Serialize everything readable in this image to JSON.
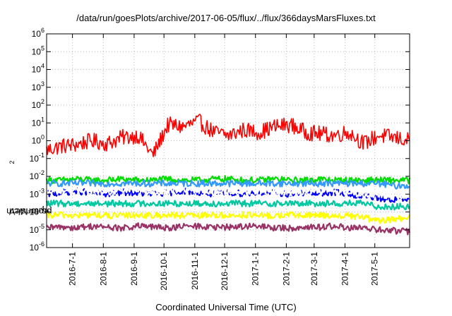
{
  "chart_data": {
    "type": "line",
    "title": "/data/run/goesPlots/archive/2017-06-05/flux/../flux/366daysMarsFluxes.txt",
    "xlabel": "Coordinated Universal Time (UTC)",
    "ylabel": {
      "prefix": "protons/cm",
      "sup": "2",
      "suffix": "-s-sr-MeV"
    },
    "yscale": "log",
    "ylim": [
      1e-06,
      1000000.0
    ],
    "xlim": [
      "2016-06-05",
      "2017-06-05"
    ],
    "grid": true,
    "x_ticks": [
      "2016-7-1",
      "2016-8-1",
      "2016-9-1",
      "2016-10-1",
      "2016-11-1",
      "2016-12-1",
      "2017-1-1",
      "2017-2-1",
      "2017-3-1",
      "2017-4-1",
      "2017-5-1"
    ],
    "y_ticks": [
      {
        "base": "10",
        "exp": "-6"
      },
      {
        "base": "10",
        "exp": "-5"
      },
      {
        "base": "10",
        "exp": "-4"
      },
      {
        "base": "10",
        "exp": "-3"
      },
      {
        "base": "10",
        "exp": "-2"
      },
      {
        "base": "10",
        "exp": "-1"
      },
      {
        "base": "10",
        "exp": "0"
      },
      {
        "base": "10",
        "exp": "1"
      },
      {
        "base": "10",
        "exp": "2"
      },
      {
        "base": "10",
        "exp": "3"
      },
      {
        "base": "10",
        "exp": "4"
      },
      {
        "base": "10",
        "exp": "5"
      },
      {
        "base": "10",
        "exp": "6"
      }
    ],
    "x_dates": [
      "2016-06-05",
      "2016-06-20",
      "2016-07-05",
      "2016-07-20",
      "2016-08-05",
      "2016-08-20",
      "2016-09-05",
      "2016-09-20",
      "2016-10-05",
      "2016-10-20",
      "2016-11-05",
      "2016-11-20",
      "2016-12-05",
      "2016-12-20",
      "2017-01-05",
      "2017-01-20",
      "2017-02-05",
      "2017-02-20",
      "2017-03-05",
      "2017-03-20",
      "2017-04-05",
      "2017-04-20",
      "2017-05-05",
      "2017-05-20",
      "2017-06-05"
    ],
    "series": [
      {
        "color": "#ff0000",
        "values": [
          0.3,
          0.5,
          0.6,
          1.0,
          0.7,
          1.5,
          2.0,
          0.15,
          8,
          6,
          12,
          3,
          2,
          4,
          3,
          6,
          8,
          3,
          2.5,
          2,
          3,
          0.7,
          2,
          1.5,
          1.0
        ]
      },
      {
        "color": "#00dd00",
        "values": [
          0.006,
          0.006,
          0.007,
          0.006,
          0.006,
          0.007,
          0.006,
          0.006,
          0.007,
          0.006,
          0.006,
          0.007,
          0.007,
          0.006,
          0.006,
          0.007,
          0.006,
          0.006,
          0.007,
          0.006,
          0.006,
          0.006,
          0.006,
          0.006,
          0.006
        ]
      },
      {
        "color": "#3399ff",
        "values": [
          0.004,
          0.004,
          0.004,
          0.004,
          0.004,
          0.004,
          0.004,
          0.004,
          0.004,
          0.004,
          0.004,
          0.004,
          0.004,
          0.004,
          0.004,
          0.004,
          0.004,
          0.004,
          0.004,
          0.004,
          0.004,
          0.004,
          0.004,
          0.003,
          0.003
        ]
      },
      {
        "color": "#0000ff",
        "values": [
          0.001,
          0.0012,
          0.0015,
          0.0012,
          0.001,
          0.0013,
          0.0012,
          0.001,
          0.0012,
          0.0015,
          0.0013,
          0.001,
          0.0012,
          0.0011,
          0.0013,
          0.0012,
          0.001,
          0.0012,
          0.0011,
          0.0013,
          0.001,
          0.0008,
          0.0006,
          0.0005,
          0.0005
        ]
      },
      {
        "color": "#ffffff",
        "values": [
          0.0012,
          0.0015,
          0.0018,
          0.0015,
          0.0012,
          0.0016,
          0.0015,
          0.0012,
          0.0015,
          0.0018,
          0.0016,
          0.0012,
          0.0015,
          0.0014,
          0.0016,
          0.0015,
          0.0012,
          0.0015,
          0.0014,
          0.0016,
          0.0012,
          0.001,
          0.0009,
          0.0008,
          0.0008
        ]
      },
      {
        "color": "#00c8a0",
        "values": [
          0.0003,
          0.0003,
          0.0003,
          0.0003,
          0.0003,
          0.0003,
          0.0003,
          0.0003,
          0.0003,
          0.0003,
          0.0003,
          0.0003,
          0.0003,
          0.0003,
          0.0003,
          0.0003,
          0.0003,
          0.0003,
          0.0003,
          0.0003,
          0.0003,
          0.0003,
          0.0002,
          0.0002,
          0.0002
        ]
      },
      {
        "color": "#ffff00",
        "values": [
          6e-05,
          7e-05,
          6e-05,
          7e-05,
          6e-05,
          6e-05,
          7e-05,
          6e-05,
          7e-05,
          6e-05,
          6e-05,
          7e-05,
          6e-05,
          7e-05,
          6e-05,
          6e-05,
          7e-05,
          6e-05,
          7e-05,
          6e-05,
          6e-05,
          5e-05,
          3e-05,
          4e-05,
          5e-05
        ]
      },
      {
        "color": "#993366",
        "values": [
          1.2e-05,
          1.5e-05,
          1.3e-05,
          1.6e-05,
          1.4e-05,
          1.2e-05,
          1.6e-05,
          1.4e-05,
          1.3e-05,
          1.5e-05,
          1.6e-05,
          1.3e-05,
          1.4e-05,
          1.6e-05,
          1.5e-05,
          1.3e-05,
          1.2e-05,
          1.5e-05,
          1.4e-05,
          1.6e-05,
          1.3e-05,
          1.2e-05,
          1e-05,
          9e-06,
          8e-06
        ]
      }
    ]
  }
}
